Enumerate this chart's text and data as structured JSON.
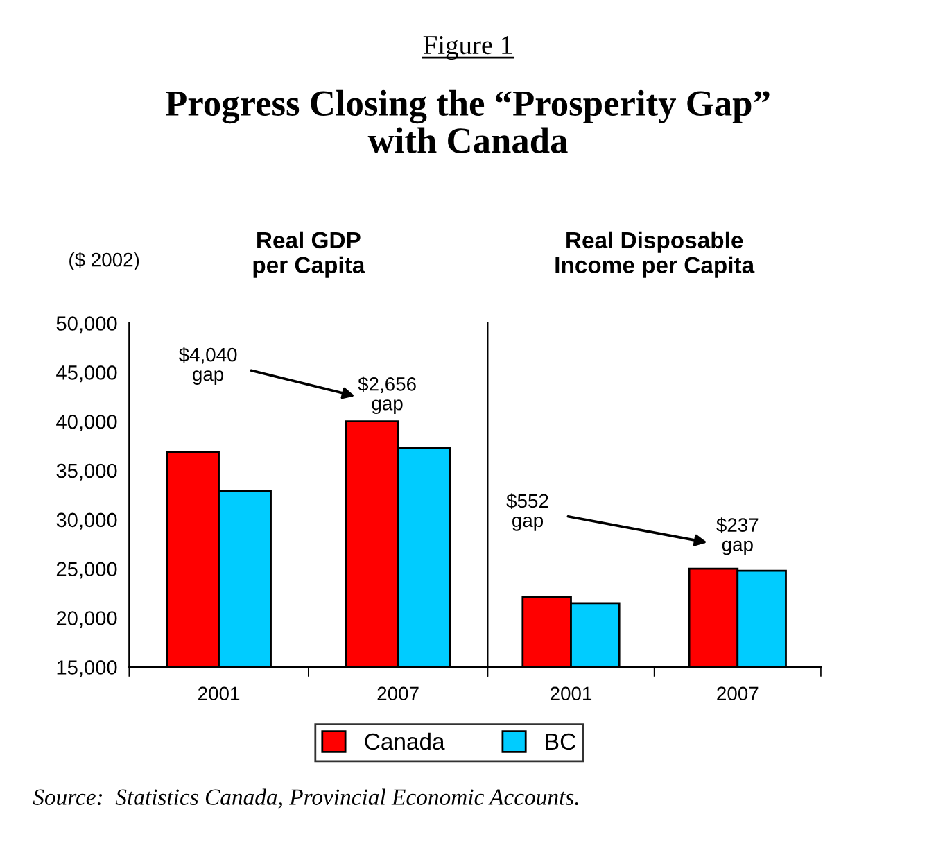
{
  "chart_data": [
    {
      "type": "bar",
      "title": "Real GDP\nper Capita",
      "ylabel": "($ 2002)",
      "categories": [
        "2001",
        "2007"
      ],
      "series": [
        {
          "name": "Canada",
          "color": "#ff0000",
          "values": [
            36900,
            40000
          ]
        },
        {
          "name": "BC",
          "color": "#00ccff",
          "values": [
            32900,
            37300
          ]
        }
      ],
      "ylim": [
        15000,
        50000
      ],
      "yticks": [
        {
          "value": 15000,
          "label": "15,000"
        },
        {
          "value": 20000,
          "label": "20,000"
        },
        {
          "value": 25000,
          "label": "25,000"
        },
        {
          "value": 30000,
          "label": "30,000"
        },
        {
          "value": 35000,
          "label": "35,000"
        },
        {
          "value": 40000,
          "label": "40,000"
        },
        {
          "value": 45000,
          "label": "45,000"
        },
        {
          "value": 50000,
          "label": "50,000"
        }
      ],
      "legend": "bottom",
      "grid": false,
      "annotations": [
        "Figure 1",
        "Progress Closing the “Prosperity Gap”\nwith Canada",
        "$4,040\ngap",
        "$2,656\ngap",
        "Source:  Statistics Canada, Provincial Economic Accounts."
      ]
    },
    {
      "type": "bar",
      "title": "Real Disposable\nIncome per Capita",
      "categories": [
        "2001",
        "2007"
      ],
      "series": [
        {
          "color": "#ff0000",
          "values": [
            22100,
            25000
          ]
        },
        {
          "color": "#00ccff",
          "values": [
            21500,
            24800
          ]
        }
      ],
      "ylim": [
        15000,
        50000
      ],
      "tick_labels": "x",
      "legend": "bottom",
      "grid": false,
      "annotations": [
        "$552\ngap",
        "$237\ngap"
      ]
    }
  ]
}
